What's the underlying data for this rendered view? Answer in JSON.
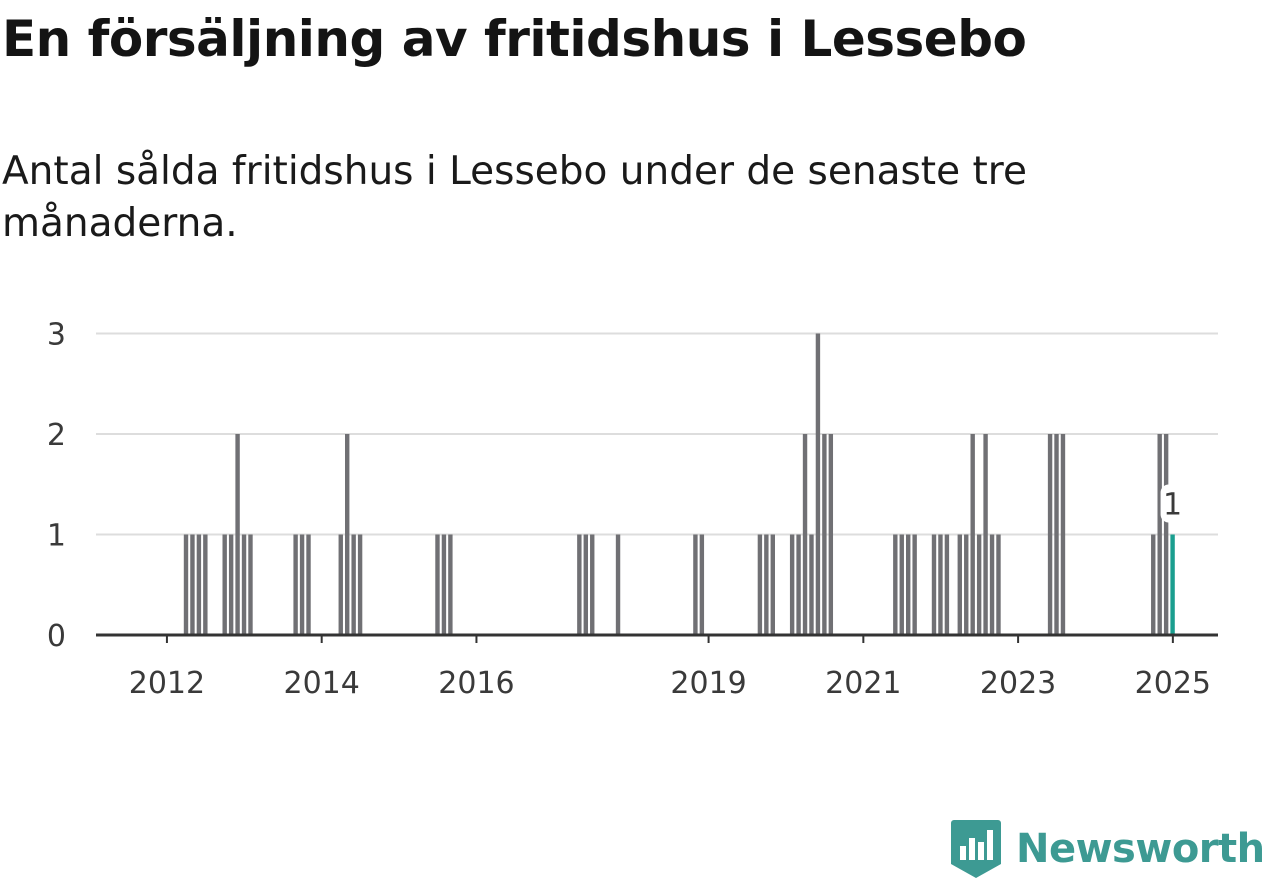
{
  "title": "En försäljning av fritidshus i Lessebo",
  "subtitle": "Antal sålda fritidshus i Lessebo under de senaste tre månaderna.",
  "brand": {
    "name": "Newsworthy",
    "icon": "bar-chart-badge-icon",
    "color": "#3d9a93"
  },
  "colors": {
    "bar": "#707074",
    "highlight": "#1a9e8f",
    "grid": "#dddddd",
    "axis": "#333333"
  },
  "chart_data": {
    "type": "bar",
    "xlabel": "",
    "ylabel": "",
    "ylim": [
      0,
      3
    ],
    "yticks": [
      0,
      1,
      2,
      3
    ],
    "xticks": [
      "2012",
      "2014",
      "2016",
      "2019",
      "2021",
      "2023",
      "2025"
    ],
    "xlim": [
      "2011-02",
      "2025-08"
    ],
    "grid": true,
    "highlight_label": "1",
    "values": [
      {
        "x": "2012-04",
        "y": 1
      },
      {
        "x": "2012-05",
        "y": 1
      },
      {
        "x": "2012-06",
        "y": 1
      },
      {
        "x": "2012-07",
        "y": 1
      },
      {
        "x": "2012-10",
        "y": 1
      },
      {
        "x": "2012-11",
        "y": 1
      },
      {
        "x": "2012-12",
        "y": 2
      },
      {
        "x": "2013-01",
        "y": 1
      },
      {
        "x": "2013-02",
        "y": 1
      },
      {
        "x": "2013-09",
        "y": 1
      },
      {
        "x": "2013-10",
        "y": 1
      },
      {
        "x": "2013-11",
        "y": 1
      },
      {
        "x": "2014-04",
        "y": 1
      },
      {
        "x": "2014-05",
        "y": 2
      },
      {
        "x": "2014-06",
        "y": 1
      },
      {
        "x": "2014-07",
        "y": 1
      },
      {
        "x": "2015-07",
        "y": 1
      },
      {
        "x": "2015-08",
        "y": 1
      },
      {
        "x": "2015-09",
        "y": 1
      },
      {
        "x": "2017-05",
        "y": 1
      },
      {
        "x": "2017-06",
        "y": 1
      },
      {
        "x": "2017-07",
        "y": 1
      },
      {
        "x": "2017-11",
        "y": 1
      },
      {
        "x": "2018-11",
        "y": 1
      },
      {
        "x": "2018-12",
        "y": 1
      },
      {
        "x": "2019-09",
        "y": 1
      },
      {
        "x": "2019-10",
        "y": 1
      },
      {
        "x": "2019-11",
        "y": 1
      },
      {
        "x": "2020-02",
        "y": 1
      },
      {
        "x": "2020-03",
        "y": 1
      },
      {
        "x": "2020-04",
        "y": 2
      },
      {
        "x": "2020-05",
        "y": 1
      },
      {
        "x": "2020-06",
        "y": 3
      },
      {
        "x": "2020-07",
        "y": 2
      },
      {
        "x": "2020-08",
        "y": 2
      },
      {
        "x": "2021-06",
        "y": 1
      },
      {
        "x": "2021-07",
        "y": 1
      },
      {
        "x": "2021-08",
        "y": 1
      },
      {
        "x": "2021-09",
        "y": 1
      },
      {
        "x": "2021-12",
        "y": 1
      },
      {
        "x": "2022-01",
        "y": 1
      },
      {
        "x": "2022-02",
        "y": 1
      },
      {
        "x": "2022-04",
        "y": 1
      },
      {
        "x": "2022-05",
        "y": 1
      },
      {
        "x": "2022-06",
        "y": 2
      },
      {
        "x": "2022-07",
        "y": 1
      },
      {
        "x": "2022-08",
        "y": 2
      },
      {
        "x": "2022-09",
        "y": 1
      },
      {
        "x": "2022-10",
        "y": 1
      },
      {
        "x": "2023-06",
        "y": 2
      },
      {
        "x": "2023-07",
        "y": 2
      },
      {
        "x": "2023-08",
        "y": 2
      },
      {
        "x": "2024-10",
        "y": 1
      },
      {
        "x": "2024-11",
        "y": 2
      },
      {
        "x": "2024-12",
        "y": 2
      },
      {
        "x": "2025-01",
        "y": 1,
        "highlight": true
      }
    ]
  }
}
